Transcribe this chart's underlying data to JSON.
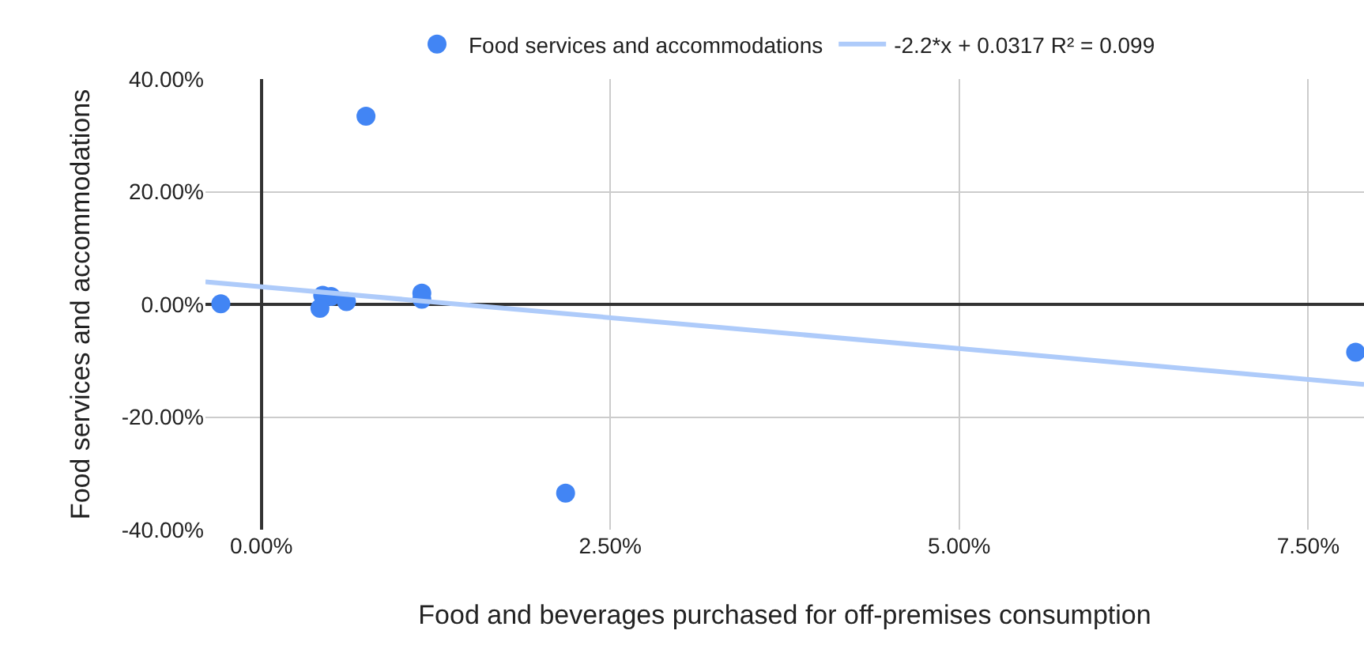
{
  "chart_data": {
    "type": "scatter",
    "xlabel": "Food and beverages purchased for off-premises consumption",
    "ylabel": "Food services and accommodations",
    "xlim": [
      -0.4,
      7.9
    ],
    "xticks": [
      {
        "value": 0,
        "label": "0.00%"
      },
      {
        "value": 2.5,
        "label": "2.50%"
      },
      {
        "value": 5,
        "label": "5.00%"
      },
      {
        "value": 7.5,
        "label": "7.50%"
      }
    ],
    "ylim": [
      -40,
      40
    ],
    "yticks": [
      {
        "value": -40,
        "label": "-40.00%"
      },
      {
        "value": -20,
        "label": "-20.00%"
      },
      {
        "value": 0,
        "label": "0.00%"
      },
      {
        "value": 20,
        "label": "20.00%"
      },
      {
        "value": 40,
        "label": "40.00%"
      }
    ],
    "grid": true,
    "legend": "top",
    "series": [
      {
        "name": "Food services and accommodations",
        "color": "#4285f4",
        "marker": "circle",
        "x": [
          -0.29,
          0.75,
          0.44,
          0.5,
          0.42,
          0.61,
          1.15,
          1.15,
          2.18,
          7.84
        ],
        "values": [
          0.1,
          33.4,
          1.6,
          1.4,
          -0.7,
          0.5,
          2.0,
          0.9,
          -33.5,
          -8.5
        ]
      },
      {
        "name": "-2.2*x + 0.0317 R² = 0.099",
        "type": "line",
        "color": "#aecbfa",
        "x": [
          -0.4,
          7.9
        ],
        "values": [
          4.0,
          -14.2
        ]
      }
    ]
  }
}
